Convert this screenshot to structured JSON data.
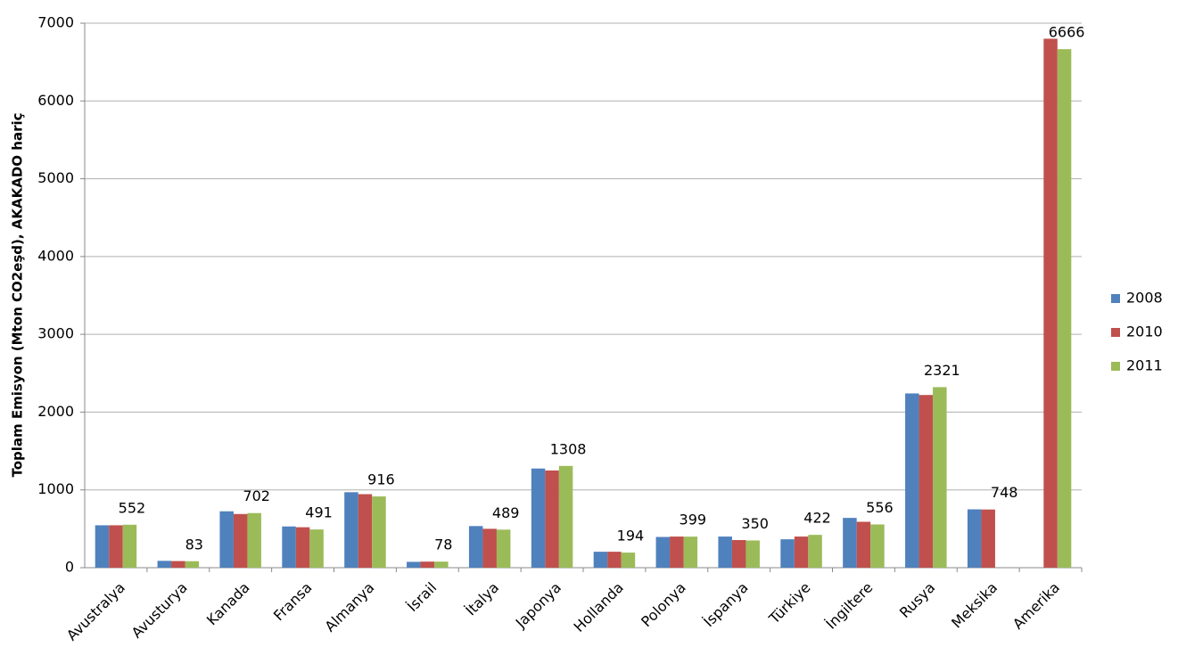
{
  "chart_data": {
    "type": "bar",
    "y_label": "Toplam Emisyon (Mton CO2eşd), AKAKADO hariç",
    "categories": [
      "Avustralya",
      "Avusturya",
      "Kanada",
      "Fransa",
      "Almanya",
      "İsrail",
      "İtalya",
      "Japonya",
      "Hollanda",
      "Polonya",
      "İspanya",
      "Türkiye",
      "İngiltere",
      "Rusya",
      "Meksika",
      "Amerika"
    ],
    "series": [
      {
        "name": "2008",
        "color": "#4f81bd",
        "values": [
          545,
          88,
          725,
          530,
          970,
          75,
          535,
          1275,
          205,
          395,
          400,
          365,
          640,
          2240,
          750,
          null
        ]
      },
      {
        "name": "2010",
        "color": "#c0504d",
        "values": [
          545,
          85,
          690,
          520,
          945,
          78,
          500,
          1250,
          205,
          400,
          355,
          400,
          590,
          2220,
          748,
          6800
        ]
      },
      {
        "name": "2011",
        "color": "#9bbb59",
        "values": [
          552,
          83,
          702,
          491,
          916,
          78,
          489,
          1308,
          194,
          399,
          350,
          422,
          556,
          2321,
          null,
          6666
        ]
      }
    ],
    "ylim": [
      0,
      7000
    ],
    "yticks": [
      0,
      1000,
      2000,
      3000,
      4000,
      5000,
      6000,
      7000
    ],
    "grid": true
  }
}
